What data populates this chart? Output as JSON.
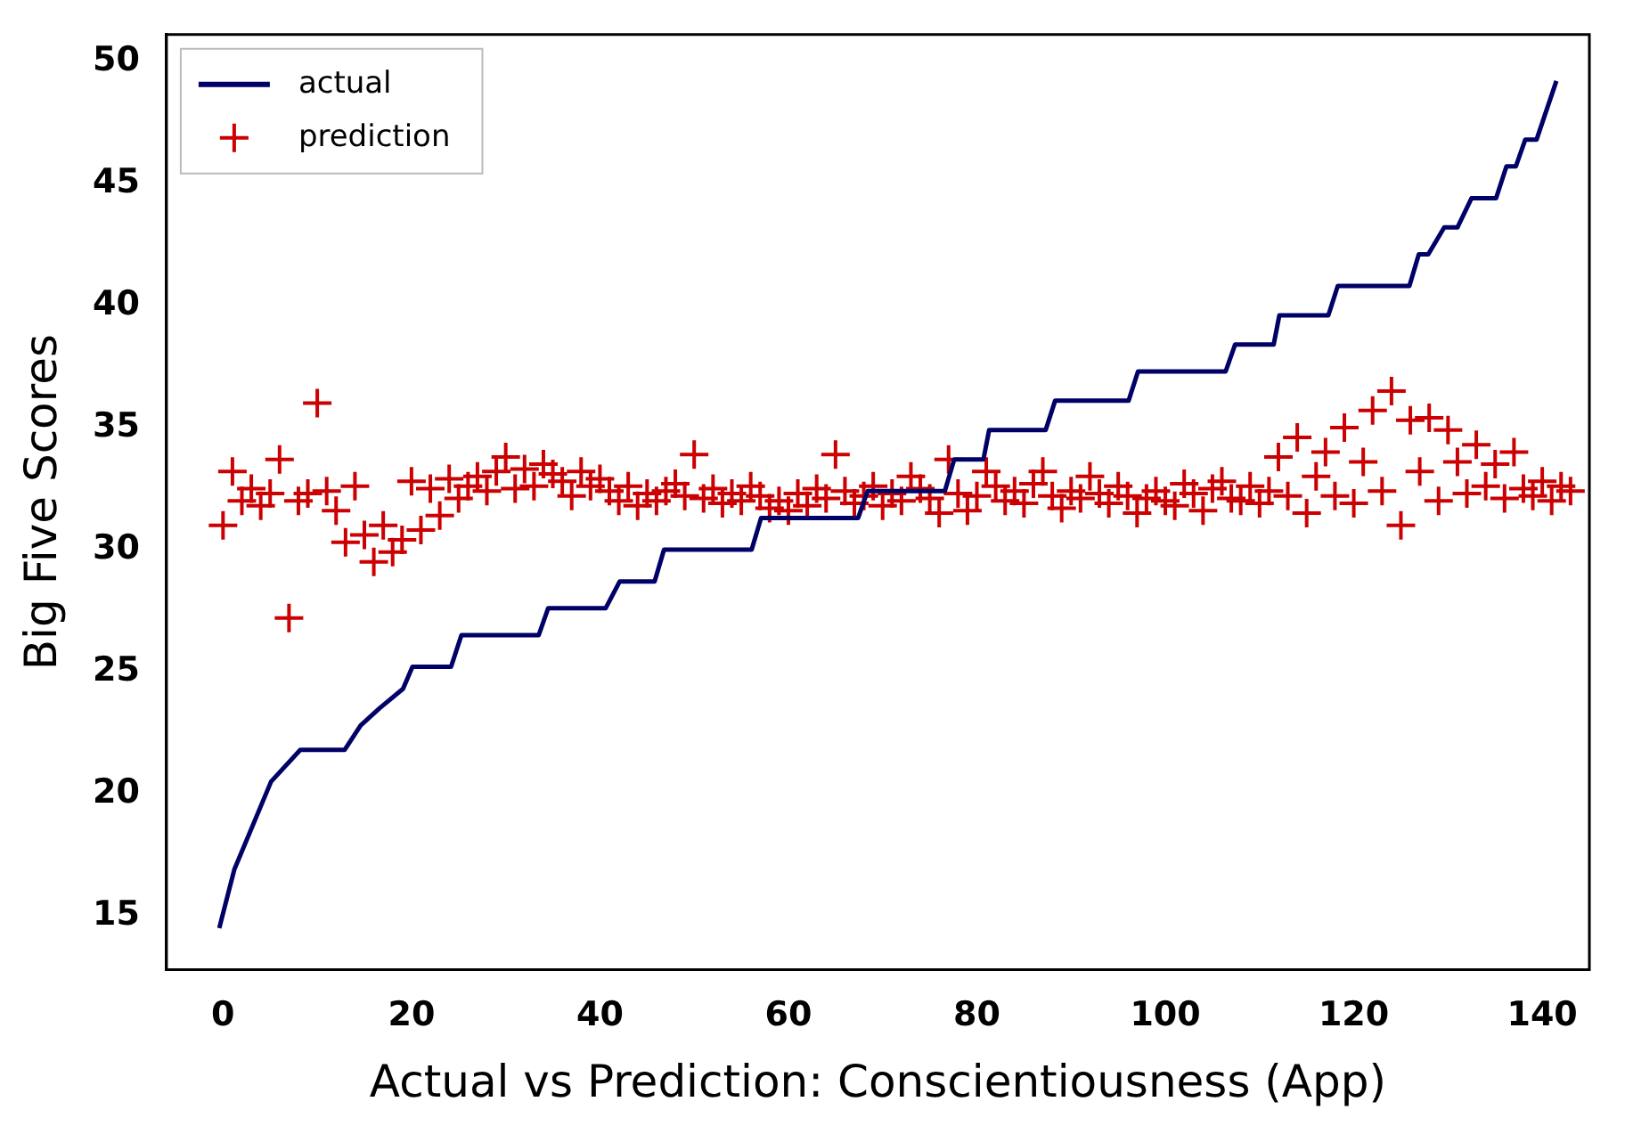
{
  "chart_data": {
    "type": "scatter",
    "xlabel": "Actual vs Prediction: Conscientiousness (App)",
    "ylabel": "Big Five Scores",
    "xlim": [
      -6,
      145
    ],
    "xticks": [
      0,
      20,
      40,
      60,
      80,
      100,
      120,
      140
    ],
    "ylim": [
      12.8,
      51.1
    ],
    "yticks": [
      15,
      20,
      25,
      30,
      35,
      40,
      45,
      50
    ],
    "grid": false,
    "legend": "top left",
    "series": [
      {
        "name": "actual",
        "type": "line",
        "color": "#000066",
        "marker": "none",
        "line_style": "solid",
        "x": [
          -0.4,
          1.2,
          5.1,
          8.2,
          12.9,
          14.6,
          16.6,
          19.1,
          20.1,
          24.2,
          25.3,
          33.5,
          34.5,
          40.6,
          42.1,
          45.8,
          46.8,
          56.1,
          57.1,
          67.4,
          68.4,
          76.6,
          77.6,
          80.7,
          81.3,
          87.3,
          88.3,
          96.1,
          97.1,
          106.4,
          107.4,
          111.5,
          112.1,
          117.3,
          118.3,
          125.9,
          126.9,
          127.9,
          129.6,
          131.0,
          132.5,
          135.1,
          136.2,
          137.2,
          138.2,
          139.4,
          141.5
        ],
        "values": [
          14.5,
          16.9,
          20.5,
          21.8,
          21.8,
          22.8,
          23.5,
          24.3,
          25.2,
          25.2,
          26.5,
          26.5,
          27.6,
          27.6,
          28.7,
          28.7,
          30.0,
          30.0,
          31.3,
          31.3,
          32.4,
          32.4,
          33.7,
          33.7,
          34.9,
          34.9,
          36.1,
          36.1,
          37.3,
          37.3,
          38.4,
          38.4,
          39.6,
          39.6,
          40.8,
          40.8,
          42.1,
          42.1,
          43.2,
          43.2,
          44.4,
          44.4,
          45.7,
          45.7,
          46.8,
          46.8,
          49.2
        ]
      },
      {
        "name": "prediction",
        "color": "#cc0000",
        "marker": "cross",
        "x": [
          0,
          1,
          2,
          3,
          4,
          5,
          6,
          7,
          8,
          9,
          10,
          11,
          12,
          13,
          14,
          15,
          16,
          17,
          18,
          19,
          20,
          21,
          22,
          23,
          24,
          25,
          26,
          27,
          28,
          29,
          30,
          31,
          32,
          33,
          34,
          35,
          36,
          37,
          38,
          39,
          40,
          41,
          42,
          43,
          44,
          45,
          46,
          47,
          48,
          49,
          50,
          51,
          52,
          53,
          54,
          55,
          56,
          57,
          58,
          59,
          60,
          61,
          62,
          63,
          64,
          65,
          66,
          67,
          68,
          69,
          70,
          71,
          72,
          73,
          74,
          75,
          76,
          77,
          78,
          79,
          80,
          81,
          82,
          83,
          84,
          85,
          86,
          87,
          88,
          89,
          90,
          91,
          92,
          93,
          94,
          95,
          96,
          97,
          98,
          99,
          100,
          101,
          102,
          103,
          104,
          105,
          106,
          107,
          108,
          109,
          110,
          111,
          112,
          113,
          114,
          115,
          116,
          117,
          118,
          119,
          120,
          121,
          122,
          123,
          124,
          125,
          126,
          127,
          128,
          129,
          130,
          131,
          132,
          133,
          134,
          135,
          136,
          137,
          138,
          139,
          140,
          141,
          142,
          143
        ],
        "values": [
          31.0,
          33.2,
          32.0,
          32.5,
          31.8,
          32.3,
          33.7,
          27.2,
          32.0,
          32.3,
          36.0,
          32.4,
          31.6,
          30.3,
          32.6,
          30.6,
          29.5,
          31.0,
          29.9,
          30.4,
          32.8,
          30.8,
          32.5,
          31.4,
          32.9,
          32.1,
          32.6,
          33.0,
          32.4,
          33.2,
          33.8,
          32.5,
          33.3,
          32.6,
          33.5,
          33.1,
          32.8,
          32.2,
          33.2,
          32.6,
          32.9,
          32.4,
          32.0,
          32.6,
          31.8,
          32.3,
          32.0,
          32.4,
          32.7,
          32.2,
          33.9,
          32.1,
          32.5,
          31.9,
          32.3,
          32.0,
          32.6,
          32.2,
          31.7,
          32.0,
          31.6,
          32.3,
          31.8,
          32.5,
          32.1,
          33.9,
          32.4,
          31.9,
          32.2,
          32.6,
          31.8,
          32.3,
          32.0,
          33.0,
          32.5,
          32.1,
          31.5,
          33.7,
          32.3,
          31.6,
          32.2,
          33.2,
          32.6,
          32.0,
          32.4,
          31.9,
          32.7,
          33.2,
          32.2,
          31.7,
          32.4,
          32.1,
          33.0,
          32.3,
          31.9,
          32.6,
          32.2,
          31.5,
          32.1,
          32.4,
          32.0,
          31.8,
          32.7,
          32.3,
          31.6,
          32.5,
          32.8,
          32.1,
          32.0,
          32.6,
          31.9,
          32.4,
          33.8,
          32.2,
          34.6,
          31.5,
          33.0,
          34.0,
          32.2,
          35.0,
          31.9,
          33.6,
          35.7,
          32.4,
          36.5,
          31.0,
          35.3,
          33.2,
          35.4,
          32.0,
          34.9,
          33.6,
          32.3,
          34.3,
          32.6,
          33.5,
          32.1,
          34.0,
          32.5,
          32.2,
          32.8,
          32.0,
          32.6,
          32.4
        ]
      }
    ]
  }
}
